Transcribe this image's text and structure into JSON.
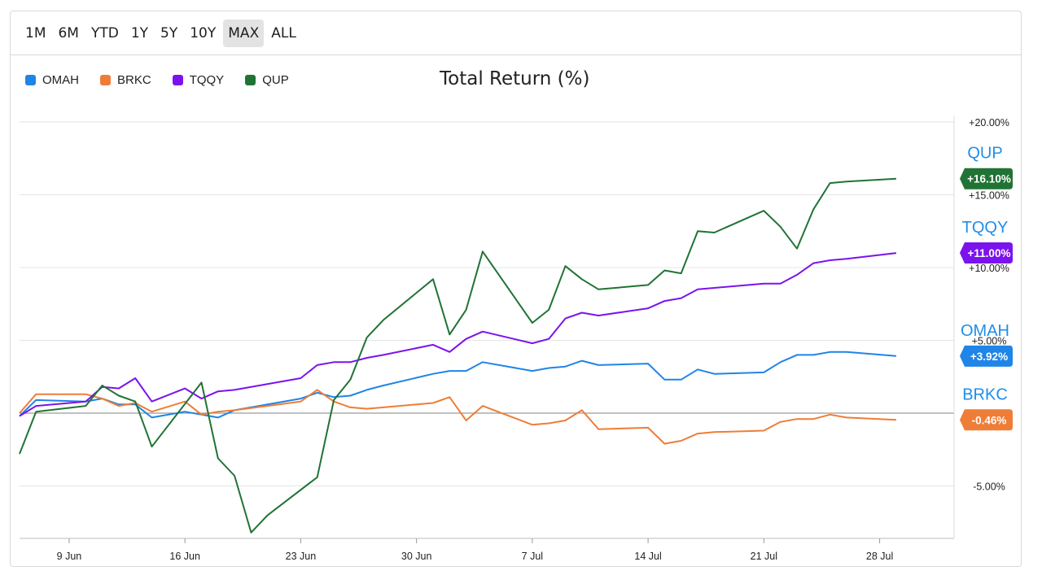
{
  "range_buttons": [
    {
      "label": "1M",
      "active": false
    },
    {
      "label": "6M",
      "active": false
    },
    {
      "label": "YTD",
      "active": false
    },
    {
      "label": "1Y",
      "active": false
    },
    {
      "label": "5Y",
      "active": false
    },
    {
      "label": "10Y",
      "active": false
    },
    {
      "label": "MAX",
      "active": true
    },
    {
      "label": "ALL",
      "active": false
    }
  ],
  "chart_data": {
    "type": "line",
    "title": "Total Return (%)",
    "xlabel": "",
    "ylabel": "",
    "ylim": [
      -8.6,
      21
    ],
    "xlim": [
      0,
      56.5
    ],
    "x_ticks": [
      {
        "label": "9 Jun",
        "x": 3
      },
      {
        "label": "16 Jun",
        "x": 10
      },
      {
        "label": "23 Jun",
        "x": 17
      },
      {
        "label": "30 Jun",
        "x": 24
      },
      {
        "label": "7 Jul",
        "x": 31
      },
      {
        "label": "14 Jul",
        "x": 38
      },
      {
        "label": "21 Jul",
        "x": 45
      },
      {
        "label": "28 Jul",
        "x": 52
      }
    ],
    "y_ticks": [
      {
        "label": "+20.00%",
        "y": 20
      },
      {
        "label": "+15.00%",
        "y": 15
      },
      {
        "label": "+10.00%",
        "y": 10
      },
      {
        "label": "+5.00%",
        "y": 5
      },
      {
        "label": "-5.00%",
        "y": -5
      }
    ],
    "grid": true,
    "legend_position": "top-left",
    "series": [
      {
        "name": "OMAH",
        "color": "#1f85e6",
        "last_value": "+3.92%",
        "x": [
          0,
          1,
          4,
          5,
          6,
          7,
          8,
          10,
          11,
          12,
          13,
          17,
          18,
          19,
          20,
          21,
          22,
          25,
          26,
          27,
          28,
          31,
          32,
          33,
          34,
          35,
          38,
          39,
          40,
          41,
          42,
          45,
          46,
          47,
          48,
          49,
          50,
          53
        ],
        "y": [
          -0.2,
          0.9,
          0.8,
          1.0,
          0.6,
          0.6,
          -0.3,
          0.1,
          -0.1,
          -0.3,
          0.2,
          1.0,
          1.4,
          1.1,
          1.2,
          1.6,
          1.9,
          2.7,
          2.9,
          2.9,
          3.5,
          2.9,
          3.1,
          3.2,
          3.6,
          3.3,
          3.4,
          2.3,
          2.3,
          3.0,
          2.7,
          2.8,
          3.5,
          4.0,
          4.0,
          4.2,
          4.2,
          3.92
        ]
      },
      {
        "name": "BRKC",
        "color": "#ee7d37",
        "last_value": "-0.46%",
        "x": [
          0,
          1,
          4,
          5,
          6,
          7,
          8,
          10,
          11,
          12,
          13,
          17,
          18,
          19,
          20,
          21,
          22,
          25,
          26,
          27,
          28,
          31,
          32,
          33,
          34,
          35,
          38,
          39,
          40,
          41,
          42,
          45,
          46,
          47,
          48,
          49,
          50,
          53
        ],
        "y": [
          0.0,
          1.3,
          1.3,
          1.0,
          0.5,
          0.7,
          0.1,
          0.8,
          -0.1,
          0.1,
          0.2,
          0.8,
          1.6,
          0.8,
          0.4,
          0.3,
          0.4,
          0.7,
          1.1,
          -0.5,
          0.5,
          -0.8,
          -0.7,
          -0.5,
          0.2,
          -1.1,
          -1.0,
          -2.1,
          -1.9,
          -1.4,
          -1.3,
          -1.2,
          -0.6,
          -0.4,
          -0.4,
          -0.1,
          -0.3,
          -0.46
        ]
      },
      {
        "name": "TQQY",
        "color": "#7b13ee",
        "last_value": "+11.00%",
        "x": [
          0,
          1,
          4,
          5,
          6,
          7,
          8,
          10,
          11,
          12,
          13,
          17,
          18,
          19,
          20,
          21,
          22,
          25,
          26,
          27,
          28,
          31,
          32,
          33,
          34,
          35,
          38,
          39,
          40,
          41,
          42,
          45,
          46,
          47,
          48,
          49,
          50,
          53
        ],
        "y": [
          -0.2,
          0.5,
          0.8,
          1.8,
          1.7,
          2.4,
          0.8,
          1.7,
          1.0,
          1.5,
          1.6,
          2.4,
          3.3,
          3.5,
          3.5,
          3.8,
          4.0,
          4.7,
          4.2,
          5.1,
          5.6,
          4.8,
          5.1,
          6.5,
          6.9,
          6.7,
          7.2,
          7.7,
          7.9,
          8.5,
          8.6,
          8.9,
          8.9,
          9.5,
          10.3,
          10.5,
          10.6,
          11.0
        ]
      },
      {
        "name": "QUP",
        "color": "#217335",
        "last_value": "+16.10%",
        "x": [
          0,
          1,
          4,
          5,
          6,
          7,
          8,
          11,
          12,
          13,
          14,
          15,
          18,
          19,
          20,
          21,
          22,
          25,
          26,
          27,
          28,
          31,
          32,
          33,
          34,
          35,
          38,
          39,
          40,
          41,
          42,
          45,
          46,
          47,
          48,
          49,
          50,
          53
        ],
        "y": [
          -2.8,
          0.1,
          0.5,
          1.9,
          1.2,
          0.8,
          -2.3,
          2.1,
          -3.1,
          -4.3,
          -8.2,
          -7.0,
          -4.4,
          0.9,
          2.3,
          5.2,
          6.4,
          9.2,
          5.4,
          7.1,
          11.1,
          6.2,
          7.1,
          10.1,
          9.2,
          8.5,
          8.8,
          9.8,
          9.6,
          12.5,
          12.4,
          13.9,
          12.8,
          11.3,
          14.0,
          15.8,
          15.9,
          16.1
        ]
      }
    ]
  }
}
